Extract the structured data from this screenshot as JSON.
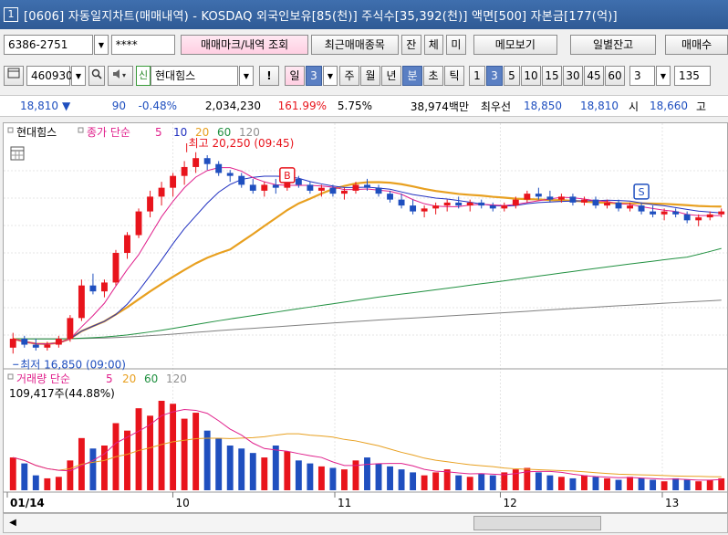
{
  "window": {
    "number": "1",
    "title": "[0606] 자동일지차트(매매내역) - KOSDAQ 외국인보유[85(천)] 주식수[35,392(천)] 액면[500] 자본금[177(억)]"
  },
  "toolbar1": {
    "account": "6386-2751",
    "password": "****",
    "btn_trade_mark": "매매마크/내역 조회",
    "btn_recent": "최근매매종목",
    "btn_jan": "잔",
    "btn_che": "체",
    "btn_mi": "미",
    "btn_memo": "메모보기",
    "btn_daily_balance": "일별잔고",
    "btn_trade_cut": "매매수"
  },
  "toolbar2": {
    "code": "460930",
    "credit_badge": "신",
    "stock_name": "현대힘스",
    "excl": "!",
    "period_day": "일",
    "period_day_count": "3",
    "period_week": "주",
    "period_month": "월",
    "period_year": "년",
    "period_minute": "분",
    "period_tick_cho": "초",
    "period_tick": "틱",
    "intervals": [
      "1",
      "3",
      "5",
      "10",
      "15",
      "30",
      "45",
      "60"
    ],
    "selected_interval": "3",
    "count": "3",
    "tail": "135"
  },
  "infobar": {
    "price": "18,810",
    "arrow": "▼",
    "change": "90",
    "change_pct": "-0.48%",
    "volume": "2,034,230",
    "vol_ratio": "161.99%",
    "turnover": "5.75%",
    "amount": "38,974백만",
    "best_label": "최우선",
    "ask": "18,850",
    "bid": "18,810",
    "open_label": "시",
    "open": "18,660",
    "high_label": "고"
  },
  "chart": {
    "legend_name": "현대힘스",
    "legend_ma": "종가 단순",
    "legend_ma_periods": [
      "5",
      "10",
      "20",
      "60",
      "120"
    ],
    "max_label": "최고 20,250 (09:45)",
    "min_label": "최저 16,850 (09:00)",
    "marker_buy": "B",
    "marker_sell": "S",
    "vol_legend": "거래량 단순",
    "vol_periods": [
      "5",
      "20",
      "60",
      "120"
    ],
    "vol_value": "109,417주(44.88%)",
    "x_labels": [
      "01/14",
      "10",
      "11",
      "12",
      "13"
    ],
    "colors": {
      "up": "#e8141c",
      "down": "#1f4fbf",
      "ma5": "#e0208c",
      "ma10": "#2030c0",
      "ma20": "#e8a020",
      "ma60": "#209040",
      "ma120": "#808080"
    }
  },
  "chart_data": {
    "type": "candlestick",
    "ylim": [
      16700,
      20400
    ],
    "candles": [
      [
        16950,
        17200,
        16850,
        17100
      ],
      [
        17100,
        17150,
        16950,
        17000
      ],
      [
        17000,
        17100,
        16900,
        16950
      ],
      [
        16950,
        17050,
        16900,
        17000
      ],
      [
        17000,
        17150,
        16950,
        17100
      ],
      [
        17100,
        17500,
        17050,
        17450
      ],
      [
        17450,
        18100,
        17400,
        18000
      ],
      [
        18000,
        18200,
        17850,
        17900
      ],
      [
        17900,
        18100,
        17800,
        18050
      ],
      [
        18050,
        18600,
        18000,
        18550
      ],
      [
        18550,
        18900,
        18450,
        18850
      ],
      [
        18850,
        19300,
        18800,
        19250
      ],
      [
        19250,
        19600,
        19150,
        19500
      ],
      [
        19500,
        19750,
        19350,
        19650
      ],
      [
        19650,
        19900,
        19500,
        19850
      ],
      [
        19850,
        20100,
        19700,
        20000
      ],
      [
        20000,
        20250,
        19900,
        20150
      ],
      [
        20150,
        20200,
        19950,
        20050
      ],
      [
        20050,
        20100,
        19850,
        19900
      ],
      [
        19900,
        19950,
        19750,
        19850
      ],
      [
        19850,
        19900,
        19650,
        19700
      ],
      [
        19700,
        19800,
        19550,
        19600
      ],
      [
        19600,
        19750,
        19500,
        19700
      ],
      [
        19700,
        19800,
        19550,
        19650
      ],
      [
        19650,
        19850,
        19600,
        19800
      ],
      [
        19800,
        19850,
        19650,
        19700
      ],
      [
        19700,
        19750,
        19550,
        19600
      ],
      [
        19600,
        19700,
        19500,
        19650
      ],
      [
        19650,
        19700,
        19500,
        19550
      ],
      [
        19550,
        19650,
        19450,
        19600
      ],
      [
        19600,
        19750,
        19550,
        19700
      ],
      [
        19700,
        19800,
        19600,
        19650
      ],
      [
        19650,
        19700,
        19500,
        19550
      ],
      [
        19550,
        19600,
        19400,
        19450
      ],
      [
        19450,
        19550,
        19300,
        19350
      ],
      [
        19350,
        19450,
        19200,
        19250
      ],
      [
        19250,
        19350,
        19150,
        19300
      ],
      [
        19300,
        19400,
        19200,
        19350
      ],
      [
        19350,
        19450,
        19250,
        19400
      ],
      [
        19400,
        19500,
        19300,
        19350
      ],
      [
        19350,
        19450,
        19250,
        19400
      ],
      [
        19400,
        19450,
        19300,
        19350
      ],
      [
        19350,
        19400,
        19250,
        19300
      ],
      [
        19300,
        19400,
        19250,
        19350
      ],
      [
        19350,
        19500,
        19300,
        19450
      ],
      [
        19450,
        19600,
        19400,
        19550
      ],
      [
        19550,
        19650,
        19450,
        19500
      ],
      [
        19500,
        19600,
        19400,
        19450
      ],
      [
        19450,
        19550,
        19400,
        19500
      ],
      [
        19500,
        19550,
        19350,
        19400
      ],
      [
        19400,
        19500,
        19350,
        19450
      ],
      [
        19450,
        19500,
        19300,
        19350
      ],
      [
        19350,
        19450,
        19300,
        19400
      ],
      [
        19400,
        19450,
        19250,
        19300
      ],
      [
        19300,
        19400,
        19250,
        19350
      ],
      [
        19350,
        19400,
        19200,
        19250
      ],
      [
        19250,
        19350,
        19150,
        19200
      ],
      [
        19200,
        19300,
        19100,
        19250
      ],
      [
        19250,
        19300,
        19150,
        19200
      ],
      [
        19200,
        19250,
        19050,
        19100
      ],
      [
        19100,
        19200,
        19000,
        19150
      ],
      [
        19150,
        19250,
        19100,
        19200
      ],
      [
        19200,
        19300,
        19150,
        19250
      ]
    ],
    "volumes": [
      22,
      18,
      10,
      8,
      9,
      20,
      35,
      28,
      30,
      45,
      40,
      55,
      50,
      60,
      58,
      48,
      52,
      40,
      35,
      30,
      28,
      25,
      22,
      30,
      26,
      20,
      18,
      16,
      15,
      14,
      20,
      22,
      18,
      16,
      14,
      12,
      10,
      12,
      14,
      10,
      9,
      11,
      10,
      12,
      14,
      15,
      12,
      10,
      9,
      8,
      10,
      9,
      8,
      7,
      9,
      8,
      7,
      6,
      8,
      7,
      6,
      7,
      8
    ]
  }
}
